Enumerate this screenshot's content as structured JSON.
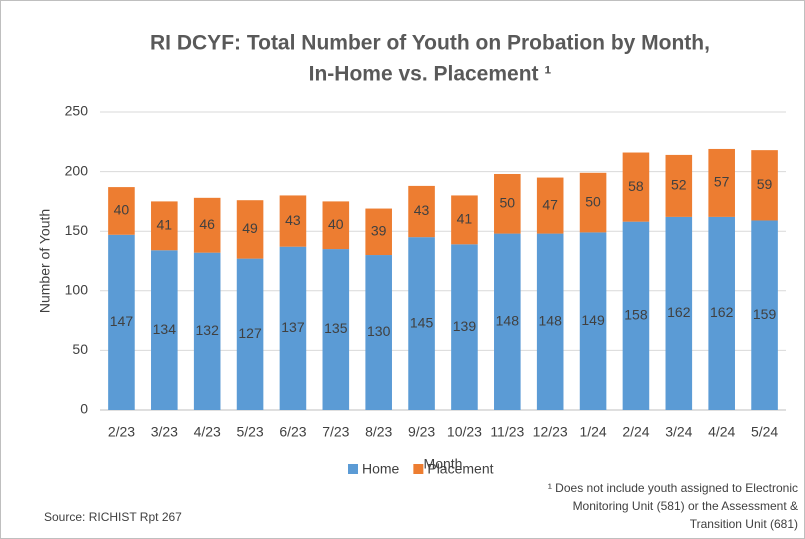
{
  "chart_data": {
    "type": "stacked_bar",
    "title": [
      "RI DCYF: Total Number of Youth on Probation by Month,",
      "In-Home vs. Placement ¹"
    ],
    "x_label": "Month",
    "y_label": "Number of Youth",
    "categories": [
      "2/23",
      "3/23",
      "4/23",
      "5/23",
      "6/23",
      "7/23",
      "8/23",
      "9/23",
      "10/23",
      "11/23",
      "12/23",
      "1/24",
      "2/24",
      "3/24",
      "4/24",
      "5/24"
    ],
    "series": [
      {
        "name": "Home",
        "color": "#5b9bd5",
        "values": [
          147,
          134,
          132,
          127,
          137,
          135,
          130,
          145,
          139,
          148,
          148,
          149,
          158,
          162,
          162,
          159
        ]
      },
      {
        "name": "Placement",
        "color": "#ed7d31",
        "values": [
          40,
          41,
          46,
          49,
          43,
          40,
          39,
          43,
          41,
          50,
          47,
          50,
          58,
          52,
          57,
          59
        ]
      }
    ],
    "ylim": [
      0,
      250
    ],
    "yticks": [
      0,
      50,
      100,
      150,
      200,
      250
    ],
    "grid": true,
    "legend": "bottom",
    "footnote": [
      "¹ Does not include youth assigned to Electronic",
      "Monitoring Unit (581) or the Assessment &",
      "Transition Unit (681)"
    ],
    "source": "Source: RICHIST Rpt 267"
  }
}
